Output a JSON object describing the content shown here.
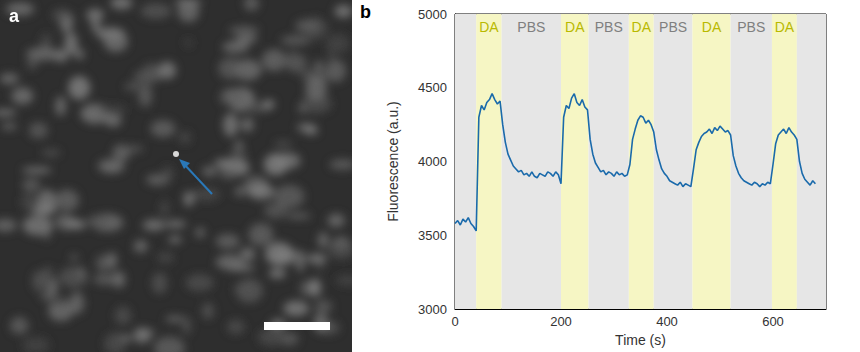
{
  "image_panel": {
    "label": "a"
  },
  "chart_data": {
    "panel_label": "b",
    "type": "line",
    "x_label": "Time (s)",
    "y_label": "Fluorescence (a.u.)",
    "xlim": [
      0,
      700
    ],
    "xticks": [
      0,
      200,
      400,
      600
    ],
    "ylim": [
      3000,
      5000
    ],
    "yticks": [
      3000,
      3500,
      4000,
      4500,
      5000
    ],
    "grid": false,
    "regions": [
      {
        "start": 0,
        "end": 40,
        "color": "#e6e6e6"
      },
      {
        "label": "DA",
        "start": 40,
        "end": 88,
        "color": "#f6f6c4"
      },
      {
        "label": "PBS",
        "start": 88,
        "end": 200,
        "color": "#e6e6e6"
      },
      {
        "label": "DA",
        "start": 200,
        "end": 252,
        "color": "#f6f6c4"
      },
      {
        "label": "PBS",
        "start": 252,
        "end": 328,
        "color": "#e6e6e6"
      },
      {
        "label": "DA",
        "start": 328,
        "end": 375,
        "color": "#f6f6c4"
      },
      {
        "label": "PBS",
        "start": 375,
        "end": 448,
        "color": "#e6e6e6"
      },
      {
        "label": "DA",
        "start": 448,
        "end": 520,
        "color": "#f6f6c4"
      },
      {
        "label": "PBS",
        "start": 520,
        "end": 598,
        "color": "#e6e6e6"
      },
      {
        "label": "DA",
        "start": 598,
        "end": 645,
        "color": "#f6f6c4"
      },
      {
        "start": 645,
        "end": 700,
        "color": "#e6e6e6"
      }
    ],
    "color": "#1a6aab",
    "x": [
      0,
      5,
      10,
      15,
      20,
      25,
      30,
      35,
      40,
      45,
      50,
      55,
      60,
      65,
      70,
      75,
      80,
      85,
      90,
      95,
      100,
      105,
      110,
      115,
      120,
      125,
      130,
      135,
      140,
      145,
      150,
      155,
      160,
      165,
      170,
      175,
      180,
      185,
      190,
      195,
      200,
      205,
      210,
      215,
      220,
      225,
      230,
      235,
      240,
      245,
      250,
      255,
      260,
      265,
      270,
      275,
      280,
      285,
      290,
      295,
      300,
      305,
      310,
      315,
      320,
      325,
      330,
      335,
      340,
      345,
      350,
      355,
      360,
      365,
      370,
      375,
      380,
      385,
      390,
      395,
      400,
      405,
      410,
      415,
      420,
      425,
      430,
      435,
      440,
      445,
      450,
      455,
      460,
      465,
      470,
      475,
      480,
      485,
      490,
      495,
      500,
      505,
      510,
      515,
      520,
      525,
      530,
      535,
      540,
      545,
      550,
      555,
      560,
      565,
      570,
      575,
      580,
      585,
      590,
      595,
      600,
      605,
      610,
      615,
      620,
      625,
      630,
      635,
      640,
      645,
      650,
      655,
      660,
      665,
      670,
      675,
      680
    ],
    "values": [
      3580,
      3600,
      3570,
      3610,
      3590,
      3620,
      3580,
      3560,
      3530,
      4300,
      4380,
      4350,
      4400,
      4420,
      4460,
      4420,
      4390,
      4410,
      4250,
      4130,
      4050,
      4010,
      3970,
      3950,
      3930,
      3940,
      3910,
      3920,
      3900,
      3930,
      3900,
      3890,
      3920,
      3910,
      3900,
      3930,
      3920,
      3900,
      3930,
      3910,
      3850,
      4300,
      4380,
      4360,
      4430,
      4460,
      4400,
      4380,
      4420,
      4370,
      4350,
      4150,
      4050,
      3990,
      3960,
      3930,
      3940,
      3910,
      3930,
      3920,
      3900,
      3930,
      3910,
      3920,
      3900,
      3910,
      3980,
      4150,
      4220,
      4280,
      4310,
      4300,
      4260,
      4280,
      4250,
      4200,
      4080,
      4010,
      3950,
      3920,
      3900,
      3870,
      3860,
      3850,
      3840,
      3860,
      3830,
      3850,
      3840,
      3830,
      3950,
      4080,
      4130,
      4170,
      4190,
      4200,
      4220,
      4190,
      4230,
      4210,
      4240,
      4220,
      4200,
      4210,
      4180,
      4040,
      3970,
      3920,
      3890,
      3870,
      3860,
      3850,
      3840,
      3860,
      3850,
      3830,
      3850,
      3840,
      3860,
      3850,
      3980,
      4120,
      4180,
      4200,
      4220,
      4190,
      4230,
      4200,
      4180,
      4150,
      4000,
      3920,
      3880,
      3860,
      3840,
      3870,
      3850
    ]
  }
}
